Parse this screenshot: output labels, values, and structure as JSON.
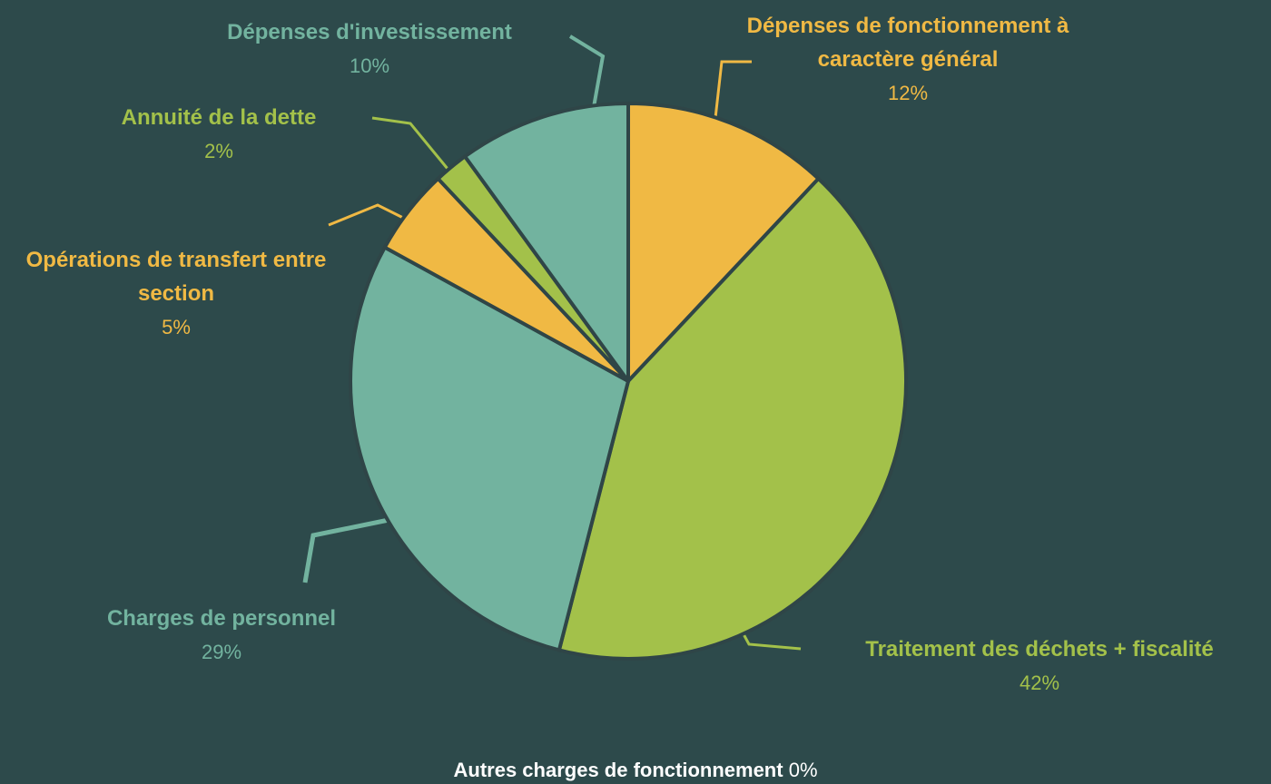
{
  "chart_data": {
    "type": "pie",
    "categories": [
      "Dépenses de fonctionnement à caractère général",
      "Traitement des déchets + fiscalité",
      "Charges de personnel",
      "Opérations de transfert entre section",
      "Annuité de la dette",
      "Dépenses d'investissement",
      "Autres charges de fonctionnement"
    ],
    "values": [
      12,
      42,
      29,
      5,
      2,
      10,
      0
    ],
    "value_labels": [
      "12%",
      "42%",
      "29%",
      "5%",
      "2%",
      "10%",
      "0%"
    ],
    "colors": [
      "#f0b944",
      "#a3c14a",
      "#72b39f",
      "#f0b944",
      "#a3c14a",
      "#72b39f",
      "#ffffff"
    ]
  }
}
